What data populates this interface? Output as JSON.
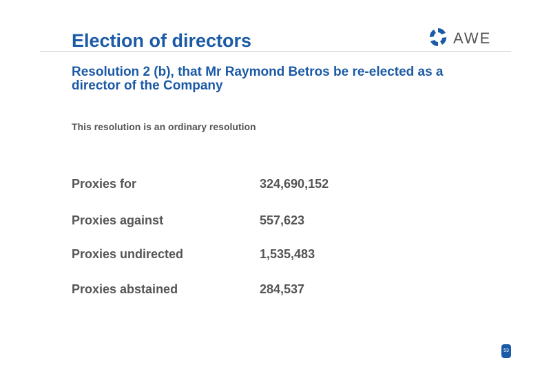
{
  "header": {
    "title": "Election of directors",
    "logo": "AWE"
  },
  "subtitle": "Resolution 2 (b), that Mr Raymond Betros be re-elected as a director of the Company",
  "note": "This resolution is an ordinary resolution",
  "table": {
    "rows": [
      [
        "Proxies for",
        "324,690,152"
      ],
      [
        "Proxies against",
        "557,623"
      ],
      [
        "Proxies undirected",
        "1,535,483"
      ],
      [
        "Proxies abstained",
        "284,537"
      ]
    ]
  },
  "page_number": "53"
}
